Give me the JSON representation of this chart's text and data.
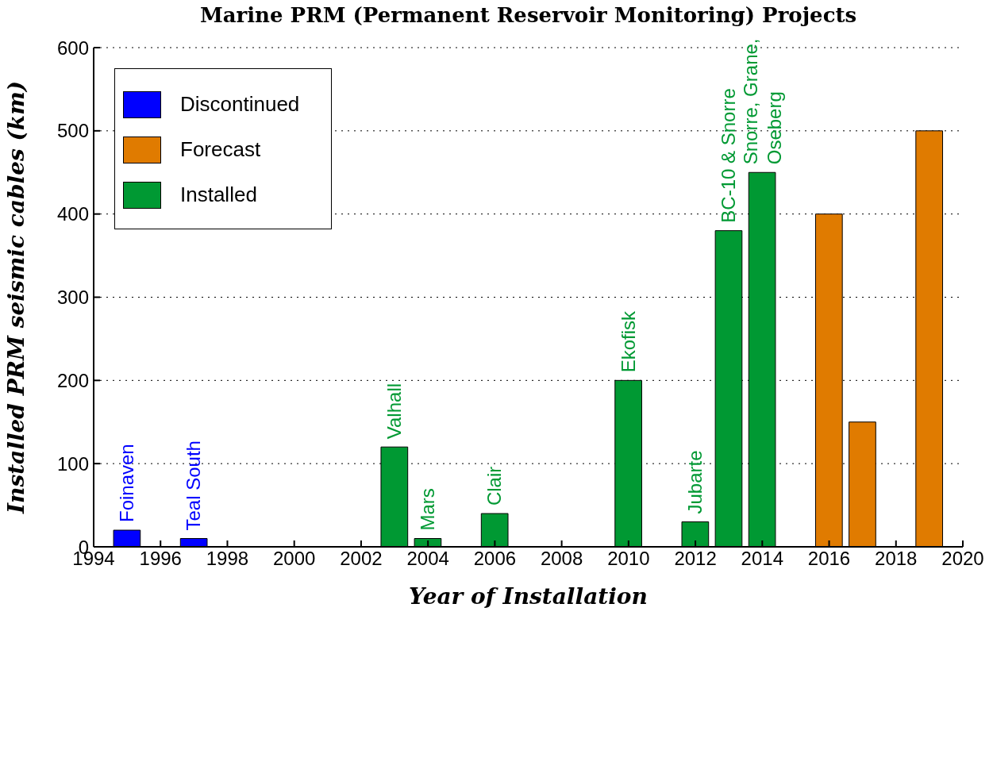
{
  "chart_data": {
    "type": "bar",
    "title": "Marine PRM (Permanent Reservoir Monitoring) Projects",
    "xlabel": "Year of Installation",
    "ylabel": "Installed PRM seismic cables (km)",
    "series": [
      {
        "name": "Discontinued",
        "color": "#0000ff",
        "x": [
          1995,
          1997
        ],
        "values": [
          20,
          10
        ]
      },
      {
        "name": "Installed",
        "color": "#009933",
        "x": [
          2003,
          2004,
          2006,
          2010,
          2012,
          2013,
          2014
        ],
        "values": [
          120,
          10,
          40,
          200,
          30,
          380,
          450
        ]
      },
      {
        "name": "Forecast",
        "color": "#e07b00",
        "x": [
          2016,
          2017,
          2019
        ],
        "values": [
          400,
          150,
          500
        ]
      }
    ],
    "annotations": [
      {
        "text": "Foinaven",
        "x": 1995,
        "y": 20
      },
      {
        "text": "Teal South",
        "x": 1997,
        "y": 10
      },
      {
        "text": "Valhall",
        "x": 2003,
        "y": 120
      },
      {
        "text": "Mars",
        "x": 2004,
        "y": 10
      },
      {
        "text": "Clair",
        "x": 2006,
        "y": 40
      },
      {
        "text": "Ekofisk",
        "x": 2010,
        "y": 200
      },
      {
        "text": "Jubarte",
        "x": 2012,
        "y": 30
      },
      {
        "text": "BC-10 & Snorre",
        "x": 2013,
        "y": 380
      },
      {
        "text": "Snorre, Grane,\nOseberg",
        "x": 2014,
        "y": 450
      }
    ],
    "xlim": [
      1994,
      2020
    ],
    "xticks": [
      1994,
      1996,
      1998,
      2000,
      2002,
      2004,
      2006,
      2008,
      2010,
      2012,
      2014,
      2016,
      2018,
      2020
    ],
    "ylim": [
      0,
      600
    ],
    "yticks": [
      0,
      100,
      200,
      300,
      400,
      500,
      600
    ],
    "grid": "y",
    "legend": "top left"
  }
}
